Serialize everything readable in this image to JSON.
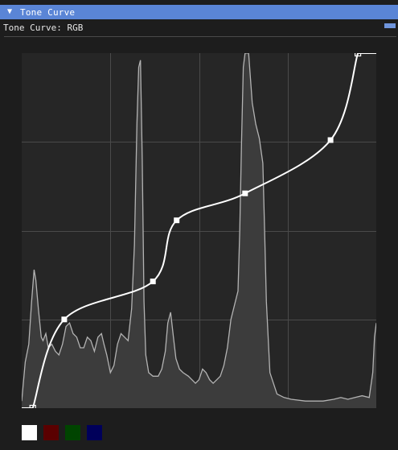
{
  "window": {
    "title": "Tone Curve",
    "collapse_icon": "triangle-down-icon",
    "title_bar_color": "#5a85d6"
  },
  "panel": {
    "subtitle": "Tone Curve: RGB",
    "mode_button_color": "#6f95dc"
  },
  "curve": {
    "domain": [
      0,
      1
    ],
    "range": [
      0,
      1
    ],
    "grid_divisions": 4,
    "curve_color": "#ffffff",
    "histogram_fill": "#3c3c3c",
    "histogram_line": "#b3b3b3",
    "control_points": [
      {
        "x": 0.031,
        "y": 0.0
      },
      {
        "x": 0.12,
        "y": 0.25
      },
      {
        "x": 0.37,
        "y": 0.357
      },
      {
        "x": 0.437,
        "y": 0.529
      },
      {
        "x": 0.63,
        "y": 0.605
      },
      {
        "x": 0.871,
        "y": 0.755
      },
      {
        "x": 0.948,
        "y": 1.0
      }
    ],
    "histogram": [
      [
        0.0,
        0.02
      ],
      [
        0.01,
        0.13
      ],
      [
        0.02,
        0.18
      ],
      [
        0.028,
        0.3
      ],
      [
        0.035,
        0.39
      ],
      [
        0.04,
        0.36
      ],
      [
        0.047,
        0.28
      ],
      [
        0.055,
        0.2
      ],
      [
        0.06,
        0.19
      ],
      [
        0.068,
        0.21
      ],
      [
        0.075,
        0.17
      ],
      [
        0.085,
        0.18
      ],
      [
        0.095,
        0.16
      ],
      [
        0.105,
        0.15
      ],
      [
        0.115,
        0.18
      ],
      [
        0.125,
        0.23
      ],
      [
        0.135,
        0.24
      ],
      [
        0.145,
        0.21
      ],
      [
        0.155,
        0.2
      ],
      [
        0.165,
        0.17
      ],
      [
        0.175,
        0.17
      ],
      [
        0.185,
        0.2
      ],
      [
        0.195,
        0.19
      ],
      [
        0.205,
        0.16
      ],
      [
        0.215,
        0.2
      ],
      [
        0.225,
        0.21
      ],
      [
        0.232,
        0.18
      ],
      [
        0.24,
        0.15
      ],
      [
        0.25,
        0.1
      ],
      [
        0.26,
        0.12
      ],
      [
        0.27,
        0.18
      ],
      [
        0.28,
        0.21
      ],
      [
        0.29,
        0.2
      ],
      [
        0.3,
        0.19
      ],
      [
        0.31,
        0.28
      ],
      [
        0.318,
        0.46
      ],
      [
        0.325,
        0.8
      ],
      [
        0.33,
        0.96
      ],
      [
        0.335,
        0.98
      ],
      [
        0.34,
        0.7
      ],
      [
        0.345,
        0.3
      ],
      [
        0.35,
        0.15
      ],
      [
        0.358,
        0.1
      ],
      [
        0.37,
        0.09
      ],
      [
        0.385,
        0.09
      ],
      [
        0.395,
        0.11
      ],
      [
        0.405,
        0.16
      ],
      [
        0.412,
        0.24
      ],
      [
        0.42,
        0.27
      ],
      [
        0.428,
        0.2
      ],
      [
        0.435,
        0.14
      ],
      [
        0.445,
        0.11
      ],
      [
        0.455,
        0.1
      ],
      [
        0.47,
        0.09
      ],
      [
        0.49,
        0.07
      ],
      [
        0.5,
        0.08
      ],
      [
        0.51,
        0.11
      ],
      [
        0.52,
        0.1
      ],
      [
        0.53,
        0.08
      ],
      [
        0.54,
        0.07
      ],
      [
        0.55,
        0.08
      ],
      [
        0.56,
        0.09
      ],
      [
        0.57,
        0.12
      ],
      [
        0.58,
        0.17
      ],
      [
        0.59,
        0.25
      ],
      [
        0.6,
        0.29
      ],
      [
        0.61,
        0.33
      ],
      [
        0.615,
        0.5
      ],
      [
        0.62,
        0.75
      ],
      [
        0.625,
        0.96
      ],
      [
        0.63,
        1.0
      ],
      [
        0.64,
        1.0
      ],
      [
        0.65,
        0.86
      ],
      [
        0.66,
        0.8
      ],
      [
        0.67,
        0.76
      ],
      [
        0.68,
        0.69
      ],
      [
        0.685,
        0.5
      ],
      [
        0.69,
        0.3
      ],
      [
        0.7,
        0.1
      ],
      [
        0.72,
        0.04
      ],
      [
        0.74,
        0.03
      ],
      [
        0.76,
        0.025
      ],
      [
        0.8,
        0.02
      ],
      [
        0.85,
        0.02
      ],
      [
        0.88,
        0.025
      ],
      [
        0.9,
        0.03
      ],
      [
        0.92,
        0.025
      ],
      [
        0.94,
        0.03
      ],
      [
        0.96,
        0.035
      ],
      [
        0.98,
        0.03
      ],
      [
        0.99,
        0.1
      ],
      [
        0.995,
        0.2
      ],
      [
        1.0,
        0.24
      ]
    ]
  },
  "channels": [
    {
      "name": "RGB",
      "color": "#ffffff"
    },
    {
      "name": "R",
      "color": "#5a0000"
    },
    {
      "name": "G",
      "color": "#004400"
    },
    {
      "name": "B",
      "color": "#00005a"
    }
  ]
}
